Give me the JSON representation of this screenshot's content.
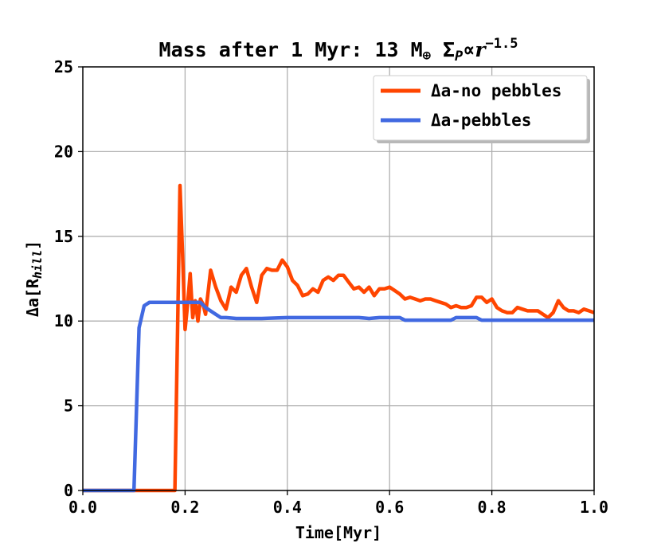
{
  "chart_data": {
    "type": "line",
    "title": {
      "main": "Mass after 1 Myr: 13 M",
      "symbol": "⊕",
      "sigma": " Σ",
      "sigma_sub": "P",
      "prop": "∝",
      "r": "r",
      "exponent": "−1.5"
    },
    "xlabel": "Time[Myr]",
    "ylabel": {
      "main": "Δa[R",
      "sub": "hill",
      "close": "]"
    },
    "xlim": [
      0.0,
      1.0
    ],
    "ylim": [
      0,
      25
    ],
    "xticks": [
      "0.0",
      "0.2",
      "0.4",
      "0.6",
      "0.8",
      "1.0"
    ],
    "yticks": [
      "0",
      "5",
      "10",
      "15",
      "20",
      "25"
    ],
    "grid": true,
    "legend_position": "top-right",
    "series": [
      {
        "name": "Δa-no pebbles",
        "color": "#ff4500",
        "x": [
          0.0,
          0.18,
          0.19,
          0.195,
          0.2,
          0.205,
          0.21,
          0.215,
          0.22,
          0.225,
          0.23,
          0.235,
          0.24,
          0.25,
          0.26,
          0.27,
          0.28,
          0.29,
          0.3,
          0.31,
          0.32,
          0.33,
          0.34,
          0.35,
          0.36,
          0.37,
          0.38,
          0.39,
          0.4,
          0.41,
          0.42,
          0.43,
          0.44,
          0.45,
          0.46,
          0.47,
          0.48,
          0.49,
          0.5,
          0.51,
          0.52,
          0.53,
          0.54,
          0.55,
          0.56,
          0.57,
          0.58,
          0.59,
          0.6,
          0.61,
          0.62,
          0.63,
          0.64,
          0.65,
          0.66,
          0.67,
          0.68,
          0.69,
          0.7,
          0.71,
          0.72,
          0.73,
          0.74,
          0.75,
          0.76,
          0.77,
          0.78,
          0.79,
          0.8,
          0.81,
          0.82,
          0.83,
          0.84,
          0.85,
          0.86,
          0.87,
          0.88,
          0.89,
          0.9,
          0.91,
          0.92,
          0.93,
          0.94,
          0.95,
          0.96,
          0.97,
          0.98,
          0.99,
          1.0
        ],
        "y": [
          0,
          0,
          18,
          14,
          9.5,
          11,
          12.8,
          10.2,
          11.2,
          10,
          11.3,
          11,
          10.4,
          13,
          12,
          11.2,
          10.7,
          12,
          11.7,
          12.7,
          13.1,
          12,
          11.1,
          12.7,
          13.1,
          13,
          13,
          13.6,
          13.2,
          12.4,
          12.1,
          11.5,
          11.6,
          11.9,
          11.7,
          12.4,
          12.6,
          12.4,
          12.7,
          12.7,
          12.3,
          11.9,
          12.0,
          11.7,
          12.0,
          11.5,
          11.9,
          11.9,
          12.0,
          11.8,
          11.6,
          11.3,
          11.4,
          11.3,
          11.2,
          11.3,
          11.3,
          11.2,
          11.1,
          11.0,
          10.8,
          10.9,
          10.8,
          10.8,
          10.9,
          11.4,
          11.4,
          11.1,
          11.3,
          10.8,
          10.6,
          10.5,
          10.5,
          10.8,
          10.7,
          10.6,
          10.6,
          10.6,
          10.4,
          10.2,
          10.5,
          11.2,
          10.8,
          10.6,
          10.6,
          10.5,
          10.7,
          10.6,
          10.5
        ]
      },
      {
        "name": "Δa-pebbles",
        "color": "#4169e1",
        "x": [
          0.0,
          0.1,
          0.11,
          0.12,
          0.13,
          0.14,
          0.15,
          0.2,
          0.22,
          0.23,
          0.24,
          0.26,
          0.27,
          0.28,
          0.3,
          0.35,
          0.4,
          0.5,
          0.54,
          0.56,
          0.58,
          0.6,
          0.62,
          0.63,
          0.65,
          0.7,
          0.72,
          0.73,
          0.75,
          0.76,
          0.77,
          0.78,
          0.8,
          0.9,
          1.0
        ],
        "y": [
          0,
          0,
          9.6,
          10.9,
          11.1,
          11.1,
          11.1,
          11.1,
          11.1,
          11.1,
          10.8,
          10.4,
          10.2,
          10.2,
          10.15,
          10.15,
          10.2,
          10.2,
          10.2,
          10.15,
          10.2,
          10.2,
          10.2,
          10.05,
          10.05,
          10.05,
          10.05,
          10.2,
          10.2,
          10.2,
          10.2,
          10.05,
          10.05,
          10.05,
          10.05
        ]
      }
    ]
  }
}
